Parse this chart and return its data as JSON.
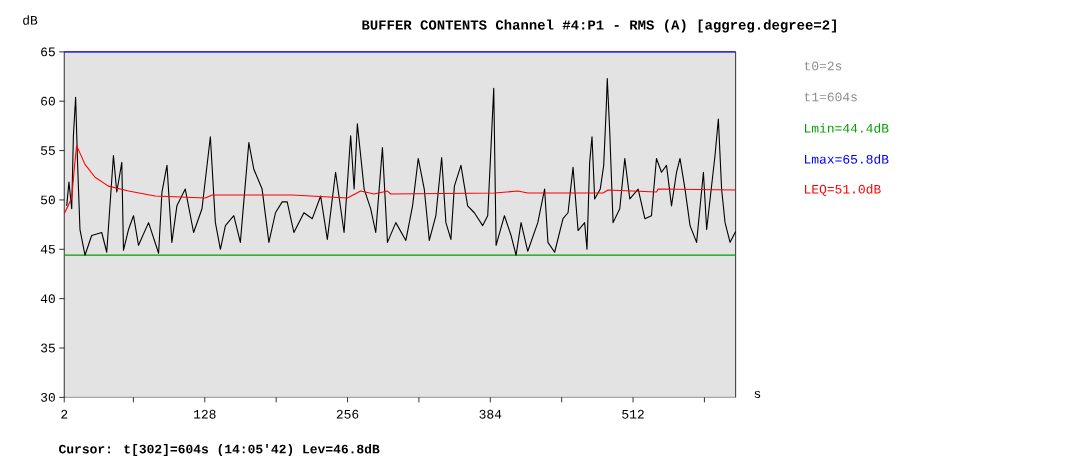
{
  "chart_data": {
    "type": "line",
    "title": "BUFFER CONTENTS Channel #4:P1 - RMS (A) [aggreg.degree=2]",
    "xlabel": "s",
    "ylabel": "dB",
    "xlim": [
      2,
      604
    ],
    "ylim": [
      30,
      65
    ],
    "xticks": [
      2,
      {
        "value": 64,
        "label": null
      },
      128,
      {
        "value": 192,
        "label": null
      },
      256,
      {
        "value": 320,
        "label": null
      },
      384,
      {
        "value": 448,
        "label": null
      },
      512,
      {
        "value": 576,
        "label": null
      }
    ],
    "yticks": [
      30,
      35,
      40,
      45,
      50,
      55,
      60,
      65
    ],
    "ref_lines": [
      {
        "axis": "y",
        "value": 44.4,
        "label": "Lmin=44.4dB",
        "color": "#00a000"
      }
    ],
    "annotations": [
      "t0=2s",
      "t1=604s",
      "Lmax=65.8dB",
      "Cursor: t[302]=604s (14:05'42) Lev=46.8dB"
    ],
    "series": [
      {
        "color": "#000000",
        "x": [
          4.2,
          6.2,
          8.7,
          10.2,
          12.2,
          14.0,
          16.1,
          20.6,
          26.6,
          35.6,
          40.1,
          46.1,
          49.1,
          53.6,
          55.1,
          59.6,
          64.1,
          68.6,
          77.6,
          86.6,
          89.6,
          94.1,
          98.5,
          103.0,
          110.5,
          118.0,
          125.5,
          133.0,
          137.5,
          142.0,
          146.5,
          154.0,
          159.9,
          167.5,
          172.0,
          179.4,
          185.5,
          191.4,
          197.4,
          201.9,
          207.9,
          216.9,
          224.4,
          231.9,
          237.9,
          245.3,
          252.9,
          258.8,
          261.9,
          264.8,
          270.9,
          276.8,
          281.3,
          287.3,
          291.8,
          299.3,
          308.3,
          314.3,
          319.4,
          324.8,
          329.3,
          335.2,
          340.4,
          344.2,
          348.7,
          351.8,
          357.7,
          363.7,
          369.7,
          377.2,
          381.7,
          384.7,
          387.1,
          389.2,
          396.7,
          402.6,
          407.1,
          411.6,
          417.6,
          426.6,
          432.7,
          435.7,
          441.7,
          449.2,
          453.7,
          458.2,
          462.7,
          468.6,
          470.7,
          473.1,
          475.2,
          477.6,
          482.6,
          485.7,
          488.0,
          488.9,
          491.1,
          494.1,
          500.1,
          504.6,
          509.1,
          516.6,
          522.6,
          528.5,
          533.0,
          537.5,
          542.0,
          546.5,
          551.0,
          554.1,
          558.6,
          563.1,
          569.0,
          575.1,
          578.0,
          585.5,
          588.5,
          591.4,
          594.5,
          599.0,
          604
        ],
        "values": [
          49.4,
          51.8,
          49.1,
          56.5,
          60.4,
          53.5,
          47.0,
          44.4,
          46.4,
          46.7,
          44.7,
          54.5,
          50.8,
          53.8,
          44.9,
          47.0,
          48.4,
          45.4,
          47.7,
          44.6,
          50.8,
          53.5,
          45.7,
          49.4,
          51.1,
          46.7,
          49.1,
          56.4,
          47.7,
          45.0,
          47.4,
          48.4,
          45.7,
          55.8,
          53.1,
          51.1,
          45.7,
          48.7,
          49.8,
          49.8,
          46.7,
          48.7,
          48.1,
          50.4,
          46.0,
          52.8,
          46.7,
          56.5,
          51.1,
          57.7,
          51.1,
          49.1,
          46.7,
          55.3,
          45.7,
          47.7,
          45.9,
          49.4,
          54.2,
          51.1,
          45.9,
          48.4,
          54.3,
          47.7,
          46.0,
          51.4,
          53.5,
          49.4,
          48.7,
          47.4,
          48.4,
          55.5,
          61.3,
          45.4,
          48.4,
          46.4,
          44.4,
          47.7,
          44.8,
          47.7,
          51.1,
          45.7,
          44.7,
          48.1,
          48.7,
          53.3,
          46.9,
          47.7,
          45.0,
          53.8,
          56.4,
          50.1,
          51.1,
          53.5,
          59.4,
          62.3,
          56.9,
          47.7,
          49.1,
          54.2,
          50.1,
          51.1,
          48.1,
          48.4,
          54.2,
          52.8,
          53.5,
          49.4,
          52.8,
          54.2,
          51.1,
          47.4,
          45.7,
          52.8,
          47.0,
          54.5,
          58.2,
          51.1,
          47.7,
          45.7,
          46.8
        ]
      },
      {
        "name": "LEQ=51.0dB",
        "color": "#ff0000",
        "x": [
          2,
          8.7,
          11.1,
          13.1,
          20.6,
          29.6,
          41.6,
          59.6,
          83.5,
          128.5,
          134.5,
          206.4,
          255.8,
          267.8,
          279.8,
          291.8,
          294.8,
          387.7,
          408.7,
          417.6,
          485.1,
          489.6,
          533.0,
          534.5,
          604
        ],
        "values": [
          48.6,
          50.2,
          53.3,
          55.5,
          53.6,
          52.3,
          51.4,
          50.9,
          50.4,
          50.2,
          50.5,
          50.5,
          50.2,
          50.9,
          50.6,
          50.9,
          50.6,
          50.7,
          50.9,
          50.7,
          50.7,
          51.0,
          50.8,
          51.1,
          51.0
        ]
      }
    ]
  }
}
